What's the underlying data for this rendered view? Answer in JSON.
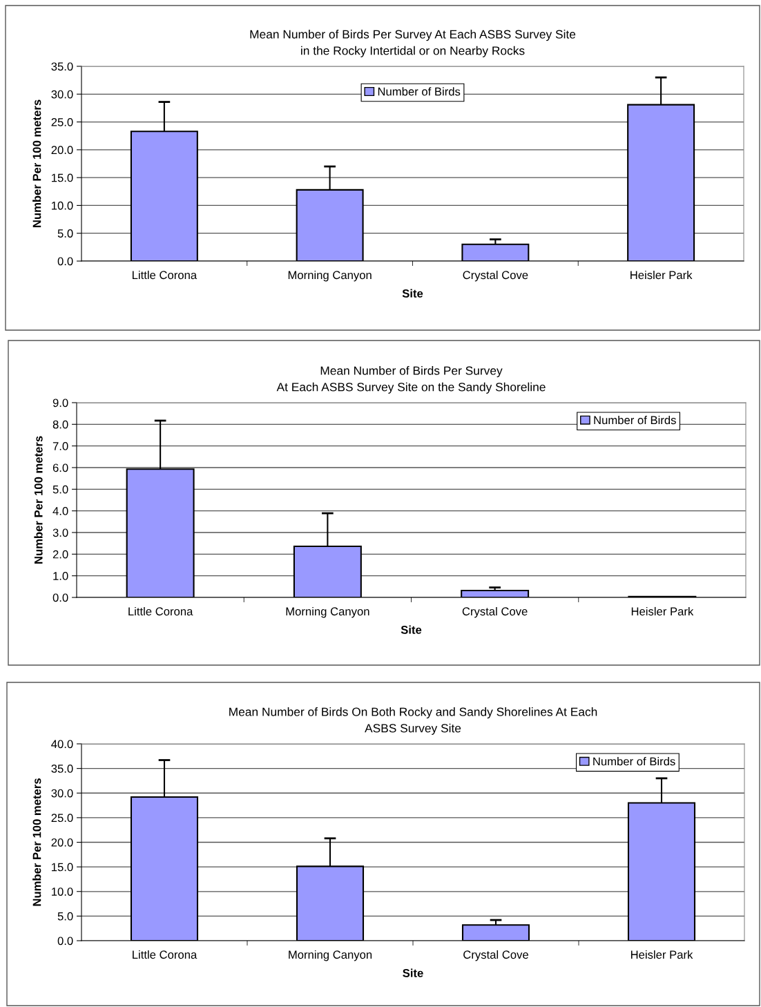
{
  "chart_data": [
    {
      "type": "bar",
      "title": "Mean Number of Birds Per Survey At Each ASBS Survey Site\nin the Rocky Intertidal or on Nearby Rocks",
      "xlabel": "Site",
      "ylabel": "Number Per 100 meters",
      "categories": [
        "Little Corona",
        "Morning Canyon",
        "Crystal Cove",
        "Heisler Park"
      ],
      "series": [
        {
          "name": "Number of Birds",
          "color": "#9999ff",
          "values": [
            23.3,
            12.8,
            3.0,
            28.1
          ],
          "errors": [
            [
              23.3,
              28.6
            ],
            [
              12.8,
              17.0
            ],
            [
              3.0,
              3.9
            ],
            [
              28.1,
              33.0
            ]
          ]
        }
      ],
      "ylim": [
        0,
        35
      ],
      "yticks": [
        {
          "value": 0,
          "label": "0.0"
        },
        {
          "value": 5,
          "label": "5.0"
        },
        {
          "value": 10,
          "label": "10.0"
        },
        {
          "value": 15,
          "label": "15.0"
        },
        {
          "value": 20,
          "label": "20.0"
        },
        {
          "value": 25,
          "label": "25.0"
        },
        {
          "value": 30,
          "label": "30.0"
        },
        {
          "value": 35,
          "label": "35.0"
        }
      ],
      "grid": "y",
      "legend": "top"
    },
    {
      "type": "bar",
      "title": "Mean Number of Birds Per Survey\nAt Each ASBS Survey Site on the Sandy Shoreline",
      "xlabel": "Site",
      "ylabel": "Number Per 100 meters",
      "categories": [
        "Little Corona",
        "Morning Canyon",
        "Crystal Cove",
        "Heisler Park"
      ],
      "series": [
        {
          "name": "Number of Birds",
          "color": "#9999ff",
          "values": [
            5.93,
            2.36,
            0.32,
            0.04
          ],
          "errors": [
            [
              5.93,
              8.17
            ],
            [
              2.36,
              3.89
            ],
            [
              0.32,
              0.46
            ],
            null
          ]
        }
      ],
      "ylim": [
        0,
        9
      ],
      "yticks": [
        {
          "value": 0,
          "label": "0.0"
        },
        {
          "value": 1,
          "label": "1.0"
        },
        {
          "value": 2,
          "label": "2.0"
        },
        {
          "value": 3,
          "label": "3.0"
        },
        {
          "value": 4,
          "label": "4.0"
        },
        {
          "value": 5,
          "label": "5.0"
        },
        {
          "value": 6,
          "label": "6.0"
        },
        {
          "value": 7,
          "label": "7.0"
        },
        {
          "value": 8,
          "label": "8.0"
        },
        {
          "value": 9,
          "label": "9.0"
        }
      ],
      "grid": "y",
      "legend": "top right"
    },
    {
      "type": "bar",
      "title": "Mean Number of Birds On Both Rocky and Sandy Shorelines At Each\nASBS Survey Site",
      "xlabel": "Site",
      "ylabel": "Number Per 100 meters",
      "categories": [
        "Little Corona",
        "Morning Canyon",
        "Crystal Cove",
        "Heisler Park"
      ],
      "series": [
        {
          "name": "Number of Birds",
          "color": "#9999ff",
          "values": [
            29.2,
            15.1,
            3.2,
            28.0
          ],
          "errors": [
            [
              29.2,
              36.7
            ],
            [
              15.1,
              20.8
            ],
            [
              3.2,
              4.2
            ],
            [
              28.0,
              33.0
            ]
          ]
        }
      ],
      "ylim": [
        0,
        40
      ],
      "yticks": [
        {
          "value": 0,
          "label": "0.0"
        },
        {
          "value": 5,
          "label": "5.0"
        },
        {
          "value": 10,
          "label": "10.0"
        },
        {
          "value": 15,
          "label": "15.0"
        },
        {
          "value": 20,
          "label": "20.0"
        },
        {
          "value": 25,
          "label": "25.0"
        },
        {
          "value": 30,
          "label": "30.0"
        },
        {
          "value": 35,
          "label": "35.0"
        },
        {
          "value": 40,
          "label": "40.0"
        }
      ],
      "grid": "y",
      "legend": "top right"
    }
  ]
}
